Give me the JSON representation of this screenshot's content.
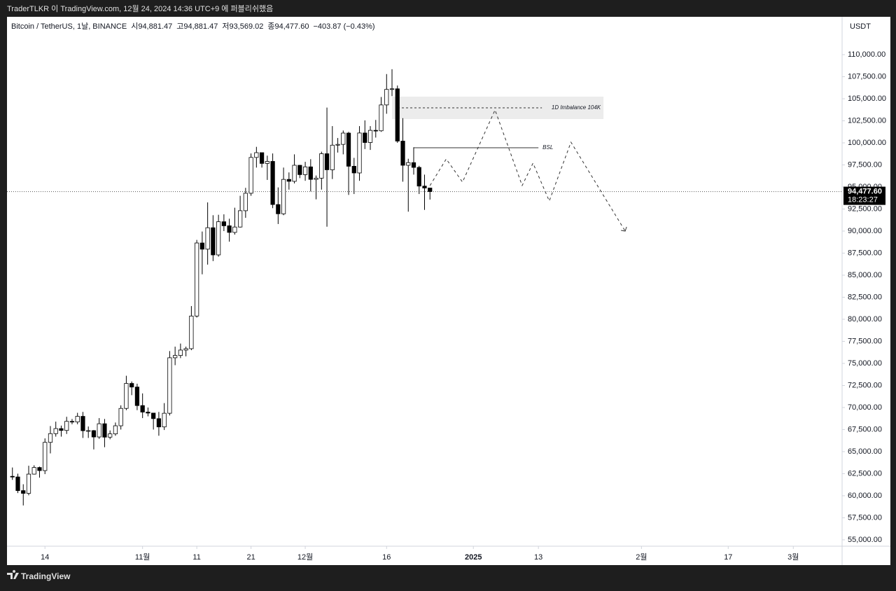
{
  "header": {
    "publisher": "TraderTLKR 이 TradingView.com, 12월 24, 2024 14:36 UTC+9 에 퍼블리쉬했음",
    "brand": "TradingView"
  },
  "chart_data": {
    "type": "candlestick",
    "info": [
      "Bitcoin / TetherUS, 1날, BINANCE",
      "시94,881.47",
      "고94,881.47",
      "저93,569.02",
      "종94,477.60",
      "−403.87 (−0.43%)"
    ],
    "currency": "USDT",
    "categories": [
      "2024-10-08",
      "2024-10-09",
      "2024-10-10",
      "2024-10-11",
      "2024-10-12",
      "2024-10-13",
      "2024-10-14",
      "2024-10-15",
      "2024-10-16",
      "2024-10-17",
      "2024-10-18",
      "2024-10-19",
      "2024-10-20",
      "2024-10-21",
      "2024-10-22",
      "2024-10-23",
      "2024-10-24",
      "2024-10-25",
      "2024-10-26",
      "2024-10-27",
      "2024-10-28",
      "2024-10-29",
      "2024-10-30",
      "2024-10-31",
      "2024-11-01",
      "2024-11-02",
      "2024-11-03",
      "2024-11-04",
      "2024-11-05",
      "2024-11-06",
      "2024-11-07",
      "2024-11-08",
      "2024-11-09",
      "2024-11-10",
      "2024-11-11",
      "2024-11-12",
      "2024-11-13",
      "2024-11-14",
      "2024-11-15",
      "2024-11-16",
      "2024-11-17",
      "2024-11-18",
      "2024-11-19",
      "2024-11-20",
      "2024-11-21",
      "2024-11-22",
      "2024-11-23",
      "2024-11-24",
      "2024-11-25",
      "2024-11-26",
      "2024-11-27",
      "2024-11-28",
      "2024-11-29",
      "2024-11-30",
      "2024-12-01",
      "2024-12-02",
      "2024-12-03",
      "2024-12-04",
      "2024-12-05",
      "2024-12-06",
      "2024-12-07",
      "2024-12-08",
      "2024-12-09",
      "2024-12-10",
      "2024-12-11",
      "2024-12-12",
      "2024-12-13",
      "2024-12-14",
      "2024-12-15",
      "2024-12-16",
      "2024-12-17",
      "2024-12-18",
      "2024-12-19",
      "2024-12-20",
      "2024-12-21",
      "2024-12-22",
      "2024-12-23",
      "2024-12-24"
    ],
    "open": [
      62200,
      62130,
      60580,
      60270,
      62450,
      63200,
      62850,
      66050,
      67040,
      67610,
      67400,
      68430,
      68360,
      69000,
      67370,
      67380,
      66660,
      68160,
      66640,
      67010,
      67930,
      69900,
      72730,
      72320,
      70220,
      69480,
      69370,
      68740,
      67800,
      69350,
      75640,
      75900,
      76510,
      76670,
      80370,
      88650,
      87950,
      90380,
      87300,
      91060,
      90600,
      89850,
      90460,
      92310,
      94290,
      98350,
      98890,
      97670,
      97900,
      93010,
      91960,
      95860,
      95640,
      97460,
      96400,
      97280,
      95860,
      96000,
      98770,
      96950,
      99740,
      99830,
      101110,
      97350,
      96590,
      101120,
      100040,
      101420,
      101370,
      104300,
      106060,
      106130,
      100200,
      97460,
      97760,
      97220,
      95100,
      94881.47
    ],
    "high": [
      63200,
      62500,
      61300,
      63400,
      63450,
      63300,
      66500,
      67900,
      68400,
      67950,
      68950,
      68700,
      69400,
      69500,
      67850,
      67450,
      68800,
      68700,
      67400,
      68300,
      70250,
      73600,
      72950,
      72700,
      71600,
      70000,
      69400,
      69500,
      70500,
      76400,
      76900,
      77250,
      76900,
      81500,
      89000,
      89950,
      93250,
      91800,
      91850,
      91900,
      91400,
      92650,
      94000,
      94900,
      98800,
      99550,
      98700,
      98550,
      98800,
      94950,
      97200,
      96650,
      98700,
      97500,
      97850,
      98150,
      96300,
      99000,
      104000,
      101900,
      100550,
      101400,
      101250,
      98300,
      101900,
      102550,
      101900,
      102600,
      105200,
      107800,
      108350,
      106500,
      102800,
      98200,
      99500,
      97400,
      96400,
      94881.47
    ],
    "low": [
      61800,
      60300,
      58900,
      60050,
      62400,
      62050,
      62450,
      64800,
      66700,
      66700,
      67000,
      68100,
      68100,
      66550,
      66550,
      65250,
      66450,
      65500,
      66400,
      66800,
      67500,
      69700,
      71400,
      69700,
      68800,
      69000,
      67500,
      66800,
      67450,
      69100,
      74800,
      75600,
      75800,
      76500,
      80200,
      85100,
      86200,
      86600,
      87100,
      90000,
      88800,
      89600,
      90400,
      91500,
      94000,
      97200,
      97200,
      95800,
      92600,
      90800,
      91800,
      94700,
      95400,
      96000,
      95700,
      94500,
      93600,
      94700,
      90500,
      95900,
      98900,
      98700,
      94100,
      94200,
      95700,
      99300,
      99200,
      100600,
      101250,
      103300,
      105300,
      100000,
      95600,
      92200,
      96400,
      94200,
      92400,
      93569.02
    ],
    "close": [
      62130,
      60580,
      60270,
      62450,
      63200,
      62850,
      66050,
      67040,
      67610,
      67400,
      68430,
      68360,
      69000,
      67370,
      67380,
      66660,
      68160,
      66640,
      67010,
      67930,
      69900,
      72730,
      72320,
      70220,
      69480,
      69370,
      68740,
      67800,
      69350,
      75640,
      75900,
      76510,
      76670,
      80370,
      88650,
      87950,
      90380,
      87300,
      91060,
      90600,
      89850,
      90460,
      92310,
      94290,
      98350,
      98890,
      97670,
      97900,
      93010,
      91960,
      95860,
      95640,
      97460,
      96400,
      97280,
      95860,
      96000,
      98770,
      96950,
      99740,
      99830,
      101110,
      97350,
      96590,
      101120,
      100040,
      101420,
      101370,
      104300,
      106060,
      106130,
      100200,
      97460,
      97760,
      97220,
      95100,
      94880,
      94477.6
    ],
    "up_color": "#ffffff",
    "down_color": "#000000",
    "xlim": [
      "2024-10-07",
      "2025-03-10"
    ],
    "xticks": [
      {
        "value": "2024-10-14",
        "label": "14"
      },
      {
        "value": "2024-11-01",
        "label": "11월"
      },
      {
        "value": "2024-11-11",
        "label": "11"
      },
      {
        "value": "2024-11-21",
        "label": "21"
      },
      {
        "value": "2024-12-01",
        "label": "12월"
      },
      {
        "value": "2024-12-16",
        "label": "16"
      },
      {
        "value": "2025-01-01",
        "label": "2025"
      },
      {
        "value": "2025-01-13",
        "label": "13"
      },
      {
        "value": "2025-02-01",
        "label": "2월"
      },
      {
        "value": "2025-02-17",
        "label": "17"
      },
      {
        "value": "2025-03-01",
        "label": "3월"
      }
    ],
    "ylim": [
      54280,
      114290
    ],
    "yticks": [
      {
        "value": 55000,
        "label": "55,000.00"
      },
      {
        "value": 57500,
        "label": "57,500.00"
      },
      {
        "value": 60000,
        "label": "60,000.00"
      },
      {
        "value": 62500,
        "label": "62,500.00"
      },
      {
        "value": 65000,
        "label": "65,000.00"
      },
      {
        "value": 67500,
        "label": "67,500.00"
      },
      {
        "value": 70000,
        "label": "70,000.00"
      },
      {
        "value": 72500,
        "label": "72,500.00"
      },
      {
        "value": 75000,
        "label": "75,000.00"
      },
      {
        "value": 77500,
        "label": "77,500.00"
      },
      {
        "value": 80000,
        "label": "80,000.00"
      },
      {
        "value": 82500,
        "label": "82,500.00"
      },
      {
        "value": 85000,
        "label": "85,000.00"
      },
      {
        "value": 87500,
        "label": "87,500.00"
      },
      {
        "value": 90000,
        "label": "90,000.00"
      },
      {
        "value": 92500,
        "label": "92,500.00"
      },
      {
        "value": 95000,
        "label": "95,000.00"
      },
      {
        "value": 97500,
        "label": "97,500.00"
      },
      {
        "value": 100000,
        "label": "100,000.00"
      },
      {
        "value": 102500,
        "label": "102,500.00"
      },
      {
        "value": 105000,
        "label": "105,000.00"
      },
      {
        "value": 107500,
        "label": "107,500.00"
      },
      {
        "value": 110000,
        "label": "110,000.00"
      }
    ],
    "last_price": {
      "value": 94477.6,
      "label": "94,477.60"
    },
    "countdown": "18:23:27",
    "imbalance": {
      "label": "1D Imbalance 104K",
      "x": [
        "2024-12-17",
        "2025-01-25"
      ],
      "range": [
        102700,
        105240
      ],
      "level": 103970
    },
    "bsl": {
      "label": "BSL",
      "x": [
        "2024-12-21",
        "2025-01-13"
      ],
      "value": 99445
    },
    "projection": {
      "x": [
        "2024-12-24",
        "2024-12-27",
        "2024-12-30",
        "2025-01-05",
        "2025-01-10",
        "2025-01-12",
        "2025-01-15",
        "2025-01-19",
        "2025-01-29"
      ],
      "values": [
        95158,
        98174,
        95555,
        103730,
        95160,
        97700,
        93410,
        100080,
        90000
      ]
    }
  }
}
